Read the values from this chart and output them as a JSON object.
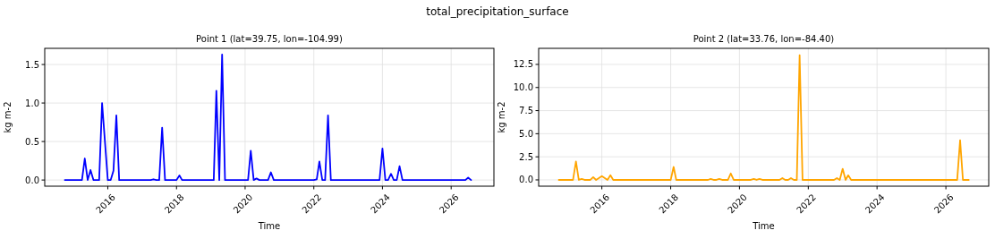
{
  "chart_data": [
    {
      "type": "line",
      "title": "Point 1 (lat=39.75, lon=-104.99)",
      "xlabel": "Time",
      "ylabel": "kg m-2",
      "annotations": [
        "total_precipitation_surface"
      ],
      "xlim": [
        "2014-03",
        "2027-04"
      ],
      "ylim": [
        -0.08,
        1.71
      ],
      "xticks": [
        "2016",
        "2018",
        "2020",
        "2022",
        "2024",
        "2026"
      ],
      "yticks": [
        {
          "value": 0,
          "label": "0.0"
        },
        0.5,
        {
          "value": 1,
          "label": "1.0"
        },
        1.5
      ],
      "grid": true,
      "series": [
        {
          "color": "#0000ff",
          "x": [
            "2014-10",
            "2015-04",
            "2015-05",
            "2015-06",
            "2015-07",
            "2015-08",
            "2015-10",
            "2015-11",
            "2016-01",
            "2016-02",
            "2016-03",
            "2016-04",
            "2016-05",
            "2016-06",
            "2016-09",
            "2016-11",
            "2016-12",
            "2017-02",
            "2017-04",
            "2017-05",
            "2017-06",
            "2017-07",
            "2017-08",
            "2017-09",
            "2018-01",
            "2018-02",
            "2018-03",
            "2019-02",
            "2019-03",
            "2019-04",
            "2019-05",
            "2019-06",
            "2020-02",
            "2020-03",
            "2020-04",
            "2020-05",
            "2020-06",
            "2020-09",
            "2020-10",
            "2020-11",
            "2022-01",
            "2022-02",
            "2022-03",
            "2022-04",
            "2022-05",
            "2022-06",
            "2022-07",
            "2023-12",
            "2024-01",
            "2024-02",
            "2024-03",
            "2024-04",
            "2024-05",
            "2024-06",
            "2024-07",
            "2024-08",
            "2026-06",
            "2026-07",
            "2026-08"
          ],
          "values": [
            0,
            0,
            0.28,
            0,
            0.13,
            0,
            0,
            1.0,
            0,
            0,
            0.12,
            0.84,
            0,
            0,
            0,
            0,
            0,
            0,
            0,
            0.01,
            0,
            0,
            0.68,
            0,
            0,
            0.06,
            0,
            0,
            1.16,
            0,
            1.63,
            0,
            0,
            0.38,
            0,
            0.02,
            0,
            0,
            0.1,
            0,
            0,
            0.01,
            0.24,
            0,
            0,
            0.84,
            0,
            0,
            0.41,
            0,
            0,
            0.08,
            0,
            0,
            0.18,
            0,
            0,
            0.03,
            0
          ]
        }
      ]
    },
    {
      "type": "line",
      "title": "Point 2 (lat=33.76, lon=-84.40)",
      "xlabel": "Time",
      "ylabel": "kg m-2",
      "xlim": [
        "2014-03",
        "2027-04"
      ],
      "ylim": [
        -0.68,
        14.24
      ],
      "xticks": [
        "2016",
        "2018",
        "2020",
        "2022",
        "2024",
        "2026"
      ],
      "yticks": [
        {
          "value": 0,
          "label": "0.0"
        },
        2.5,
        {
          "value": 5,
          "label": "5.0"
        },
        7.5,
        {
          "value": 10,
          "label": "10.0"
        },
        12.5
      ],
      "grid": true,
      "series": [
        {
          "color": "#ffa500",
          "x": [
            "2014-10",
            "2015-03",
            "2015-04",
            "2015-05",
            "2015-06",
            "2015-07",
            "2015-09",
            "2015-10",
            "2015-11",
            "2016-01",
            "2016-03",
            "2016-04",
            "2016-05",
            "2016-06",
            "2016-09",
            "2016-11",
            "2016-12",
            "2017-02",
            "2017-03",
            "2017-05",
            "2018-01",
            "2018-02",
            "2018-03",
            "2019-02",
            "2019-03",
            "2019-04",
            "2019-05",
            "2019-06",
            "2019-07",
            "2019-09",
            "2019-10",
            "2019-11",
            "2020-05",
            "2020-06",
            "2020-07",
            "2020-08",
            "2020-09",
            "2021-03",
            "2021-04",
            "2021-05",
            "2021-06",
            "2021-07",
            "2021-08",
            "2021-09",
            "2021-10",
            "2021-11",
            "2022-10",
            "2022-11",
            "2022-12",
            "2023-01",
            "2023-02",
            "2023-03",
            "2023-04",
            "2026-05",
            "2026-06",
            "2026-07",
            "2026-09"
          ],
          "values": [
            0,
            0,
            2.0,
            0,
            0.1,
            0,
            0,
            0.3,
            0,
            0.4,
            0,
            0.5,
            0,
            0,
            0,
            0,
            0,
            0,
            0,
            0,
            0,
            1.4,
            0,
            0,
            0.1,
            0,
            0,
            0.1,
            0,
            0,
            0.7,
            0,
            0,
            0.1,
            0,
            0.1,
            0,
            0,
            0.2,
            0,
            0,
            0.2,
            0,
            0,
            13.5,
            0,
            0,
            0.2,
            0,
            1.2,
            0,
            0.5,
            0,
            0,
            4.3,
            0,
            0
          ]
        }
      ]
    }
  ]
}
